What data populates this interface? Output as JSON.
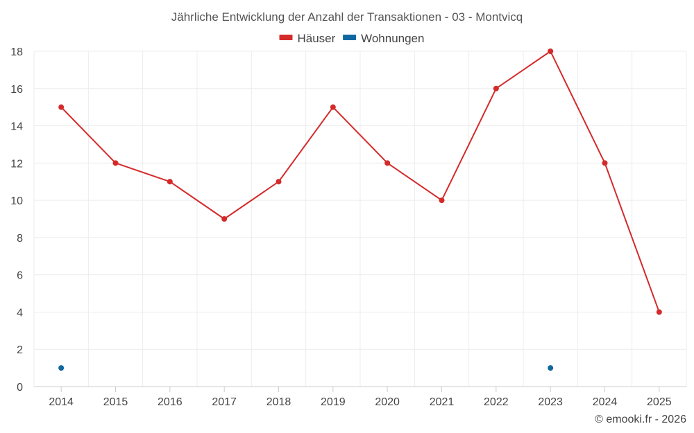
{
  "chart_data": {
    "type": "line",
    "title": "Jährliche Entwicklung der Anzahl der Transaktionen - 03 - Montvicq",
    "categories": [
      "2014",
      "2015",
      "2016",
      "2017",
      "2018",
      "2019",
      "2020",
      "2021",
      "2022",
      "2023",
      "2024",
      "2025"
    ],
    "series": [
      {
        "name": "Häuser",
        "color": "#d42a2a",
        "values": [
          15,
          12,
          11,
          9,
          11,
          15,
          12,
          10,
          16,
          18,
          12,
          4
        ]
      },
      {
        "name": "Wohnungen",
        "color": "#1068a0",
        "values": [
          1,
          null,
          null,
          null,
          null,
          null,
          null,
          null,
          null,
          1,
          null,
          null
        ]
      }
    ],
    "ylim": [
      0,
      18
    ],
    "yticks": [
      0,
      2,
      4,
      6,
      8,
      10,
      12,
      14,
      16,
      18
    ],
    "grid": true,
    "legend_position": "top-center",
    "xlabel": "",
    "ylabel": ""
  },
  "credit": "© emooki.fr - 2026"
}
